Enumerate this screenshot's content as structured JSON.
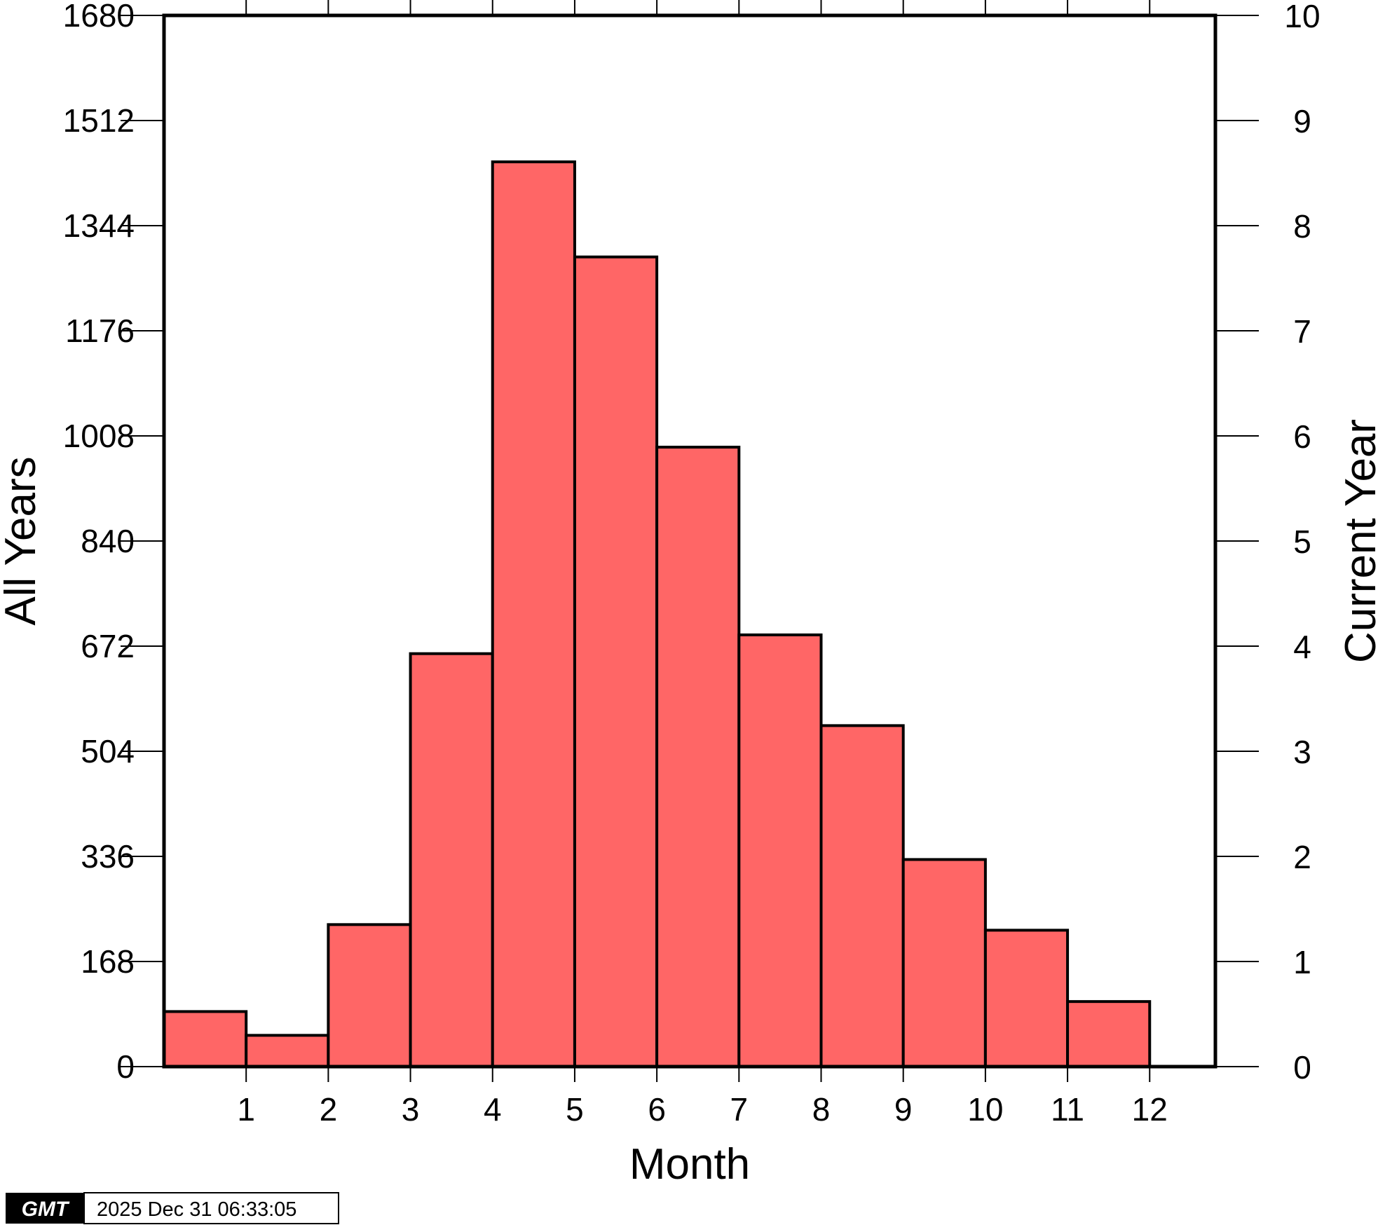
{
  "chart_data": {
    "type": "bar",
    "xlabel": "Month",
    "ylabel_left": "All Years",
    "ylabel_right": "Current Year",
    "x_ticks": [
      1,
      2,
      3,
      4,
      5,
      6,
      7,
      8,
      9,
      10,
      11,
      12
    ],
    "xlim": [
      0,
      12.8
    ],
    "y_left_ticks": [
      0,
      168,
      336,
      504,
      672,
      840,
      1008,
      1176,
      1344,
      1512,
      1680
    ],
    "y_left_lim": [
      0,
      1680
    ],
    "y_right_ticks": [
      0,
      1,
      2,
      3,
      4,
      5,
      6,
      7,
      8,
      9,
      10
    ],
    "y_right_lim": [
      0,
      10
    ],
    "bar_color": "#ff6666",
    "edge_color": "#000000",
    "bars": [
      {
        "x_start": 0,
        "x_end": 1,
        "value": 88
      },
      {
        "x_start": 1,
        "x_end": 2,
        "value": 50
      },
      {
        "x_start": 2,
        "x_end": 3,
        "value": 227
      },
      {
        "x_start": 3,
        "x_end": 4,
        "value": 660
      },
      {
        "x_start": 4,
        "x_end": 5,
        "value": 1446
      },
      {
        "x_start": 5,
        "x_end": 6,
        "value": 1294
      },
      {
        "x_start": 6,
        "x_end": 7,
        "value": 990
      },
      {
        "x_start": 7,
        "x_end": 8,
        "value": 690
      },
      {
        "x_start": 8,
        "x_end": 9,
        "value": 545
      },
      {
        "x_start": 9,
        "x_end": 10,
        "value": 331
      },
      {
        "x_start": 10,
        "x_end": 11,
        "value": 218
      },
      {
        "x_start": 11,
        "x_end": 12,
        "value": 104
      }
    ],
    "grid": false
  },
  "timestamp": {
    "logo_text": "GMT",
    "text": "2025 Dec 31 06:33:05"
  }
}
